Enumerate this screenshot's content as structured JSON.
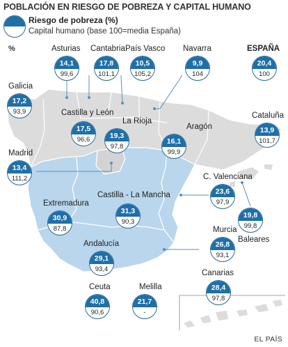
{
  "title": "POBLACIÓN EN RIESGO DE POBREZA Y CAPITAL HUMANO",
  "legend": {
    "top_label": "Riesgo de pobreza (%)",
    "bottom_label": "Capital humano (base 100=media España)"
  },
  "unit_label": "%",
  "source": "EL PAÍS",
  "colors": {
    "bubble_top": "#1f6fa8",
    "map_gray": "#dcdcdc",
    "map_blue": "#b9d6ec",
    "leader": "#5a8fb8"
  },
  "chart_data": {
    "type": "table",
    "columns": [
      "Riesgo de pobreza (%)",
      "Capital humano (base 100=media España)"
    ],
    "rows": [
      {
        "region": "Asturias",
        "riesgo": "14,1",
        "capital": "99,6"
      },
      {
        "region": "Cantabria",
        "riesgo": "17,8",
        "capital": "101,1"
      },
      {
        "region": "País Vasco",
        "riesgo": "10,5",
        "capital": "105,2"
      },
      {
        "region": "Navarra",
        "riesgo": "9,9",
        "capital": "104"
      },
      {
        "region": "ESPAÑA",
        "riesgo": "20,4",
        "capital": "100"
      },
      {
        "region": "Galicia",
        "riesgo": "17,2",
        "capital": "93,9"
      },
      {
        "region": "Castilla y León",
        "riesgo": "17,5",
        "capital": "96,6"
      },
      {
        "region": "La Rioja",
        "riesgo": "19,3",
        "capital": "97,8"
      },
      {
        "region": "Aragón",
        "riesgo": "16,1",
        "capital": "99,9"
      },
      {
        "region": "Cataluña",
        "riesgo": "13,9",
        "capital": "101,7"
      },
      {
        "region": "Madrid",
        "riesgo": "13,4",
        "capital": "111,2"
      },
      {
        "region": "C. Valenciana",
        "riesgo": "23,6",
        "capital": "97,9"
      },
      {
        "region": "Extremadura",
        "riesgo": "30,9",
        "capital": "87,8"
      },
      {
        "region": "Castilla - La Mancha",
        "riesgo": "31,3",
        "capital": "90,3"
      },
      {
        "region": "Baleares",
        "riesgo": "19,8",
        "capital": "99,8"
      },
      {
        "region": "Murcia",
        "riesgo": "26,8",
        "capital": "93,1"
      },
      {
        "region": "Andalucía",
        "riesgo": "29,1",
        "capital": "93,4"
      },
      {
        "region": "Canarias",
        "riesgo": "28,4",
        "capital": "97,8"
      },
      {
        "region": "Ceuta",
        "riesgo": "40,8",
        "capital": "90,6"
      },
      {
        "region": "Melilla",
        "riesgo": "21,7",
        "capital": "-"
      }
    ]
  }
}
